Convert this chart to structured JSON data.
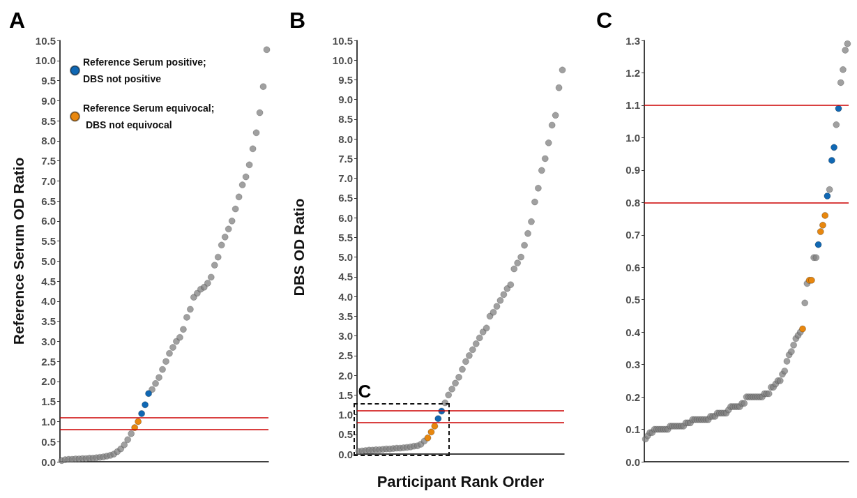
{
  "chart_data": [
    {
      "type": "scatter",
      "title": "A",
      "ylabel": "Reference Serum OD Ratio",
      "categories": [
        null,
        null,
        null,
        null,
        null,
        null,
        null,
        null,
        null,
        null,
        null,
        null,
        null,
        null,
        null,
        null,
        null,
        null,
        null,
        null,
        null,
        null,
        null,
        null,
        null,
        null,
        null,
        null,
        null,
        null,
        null,
        null,
        null,
        null,
        null,
        null,
        null,
        null,
        null,
        null,
        null,
        null,
        null,
        null,
        null,
        null,
        null,
        null,
        null,
        null,
        null,
        null,
        null,
        null,
        null,
        null,
        null,
        null,
        null,
        null
      ],
      "series": [
        {
          "color": "#808080",
          "values": [
            0.03,
            0.05,
            0.06,
            0.06,
            0.07,
            0.07,
            0.08,
            0.08,
            0.09,
            0.09,
            0.1,
            0.11,
            0.12,
            0.14,
            0.16,
            0.19,
            0.25,
            0.32,
            0.42,
            0.55,
            0.7,
            null,
            null,
            null,
            null,
            null,
            1.8,
            1.95,
            2.1,
            2.3,
            2.5,
            2.7,
            2.85,
            3.0,
            3.1,
            3.3,
            3.6,
            3.8,
            4.1,
            4.2,
            4.3,
            4.35,
            4.45,
            4.6,
            4.9,
            5.1,
            5.4,
            5.6,
            5.8,
            6.0,
            6.3,
            6.6,
            6.9,
            7.1,
            7.4,
            7.8,
            8.2,
            8.7,
            9.35,
            10.27
          ]
        },
        {
          "name": "Reference Serum positive; DBS not positive",
          "color": "#1068b4",
          "values": [
            null,
            null,
            null,
            null,
            null,
            null,
            null,
            null,
            null,
            null,
            null,
            null,
            null,
            null,
            null,
            null,
            null,
            null,
            null,
            null,
            null,
            null,
            null,
            1.2,
            1.42,
            1.7,
            null,
            null,
            null,
            null,
            null,
            null,
            null,
            null,
            null,
            null,
            null,
            null,
            null,
            null,
            null,
            null,
            null,
            null,
            null,
            null,
            null,
            null,
            null,
            null,
            null,
            null,
            null,
            null,
            null,
            null,
            null,
            null,
            null,
            null
          ]
        },
        {
          "name": "Reference Serum equivocal; DBS not equivocal",
          "color": "#e8870e",
          "values": [
            null,
            null,
            null,
            null,
            null,
            null,
            null,
            null,
            null,
            null,
            null,
            null,
            null,
            null,
            null,
            null,
            null,
            null,
            null,
            null,
            null,
            0.85,
            1.0,
            null,
            null,
            null,
            null,
            null,
            null,
            null,
            null,
            null,
            null,
            null,
            null,
            null,
            null,
            null,
            null,
            null,
            null,
            null,
            null,
            null,
            null,
            null,
            null,
            null,
            null,
            null,
            null,
            null,
            null,
            null,
            null,
            null,
            null,
            null,
            null,
            null
          ]
        }
      ],
      "ylim": [
        0,
        10.5
      ],
      "yticks": [
        {
          "value": 0,
          "label": "0.0"
        },
        {
          "value": 0.5,
          "label": "0.5"
        },
        {
          "value": 1,
          "label": "1.0"
        },
        {
          "value": 1.5,
          "label": "1.5"
        },
        {
          "value": 2,
          "label": "2.0"
        },
        {
          "value": 2.5,
          "label": "2.5"
        },
        {
          "value": 3,
          "label": "3.0"
        },
        {
          "value": 3.5,
          "label": "3.5"
        },
        {
          "value": 4,
          "label": "4.0"
        },
        {
          "value": 4.5,
          "label": "4.5"
        },
        {
          "value": 5,
          "label": "5.0"
        },
        {
          "value": 5.5,
          "label": "5.5"
        },
        {
          "value": 6,
          "label": "6.0"
        },
        {
          "value": 6.5,
          "label": "6.5"
        },
        {
          "value": 7,
          "label": "7.0"
        },
        {
          "value": 7.5,
          "label": "7.5"
        },
        {
          "value": 8,
          "label": "8.0"
        },
        {
          "value": 8.5,
          "label": "8.5"
        },
        {
          "value": 9,
          "label": "9.0"
        },
        {
          "value": 9.5,
          "label": "9.5"
        },
        {
          "value": 10,
          "label": "10.0"
        },
        {
          "value": 10.5,
          "label": "10.5"
        }
      ],
      "ref_lines": [
        {
          "axis": "y",
          "value": 0.8,
          "color": "#cc0000"
        },
        {
          "axis": "y",
          "value": 1.1,
          "color": "#cc0000"
        }
      ],
      "legend": "top left",
      "marker": "circle",
      "tick_labels": "y"
    },
    {
      "type": "scatter",
      "title": "B",
      "ylabel": "DBS OD Ratio",
      "xlabel": "Participant Rank Order",
      "categories": [
        null,
        null,
        null,
        null,
        null,
        null,
        null,
        null,
        null,
        null,
        null,
        null,
        null,
        null,
        null,
        null,
        null,
        null,
        null,
        null,
        null,
        null,
        null,
        null,
        null,
        null,
        null,
        null,
        null,
        null,
        null,
        null,
        null,
        null,
        null,
        null,
        null,
        null,
        null,
        null,
        null,
        null,
        null,
        null,
        null,
        null,
        null,
        null,
        null,
        null,
        null,
        null,
        null,
        null,
        null,
        null,
        null,
        null,
        null,
        null
      ],
      "series": [
        {
          "color": "#808080",
          "values": [
            0.07,
            0.08,
            0.09,
            0.1,
            0.1,
            0.11,
            0.11,
            0.12,
            0.13,
            0.13,
            0.14,
            0.15,
            0.15,
            0.16,
            0.17,
            0.18,
            0.2,
            0.21,
            0.25,
            0.33,
            null,
            null,
            null,
            null,
            null,
            1.3,
            1.5,
            1.65,
            1.8,
            1.95,
            2.15,
            2.35,
            2.5,
            2.65,
            2.8,
            2.95,
            3.1,
            3.2,
            3.5,
            3.6,
            3.75,
            3.9,
            4.05,
            4.2,
            4.3,
            4.7,
            4.85,
            5.0,
            5.3,
            5.6,
            5.9,
            6.4,
            6.75,
            7.2,
            7.5,
            7.9,
            8.35,
            8.6,
            9.3,
            9.75
          ]
        },
        {
          "color": "#1068b4",
          "values": [
            null,
            null,
            null,
            null,
            null,
            null,
            null,
            null,
            null,
            null,
            null,
            null,
            null,
            null,
            null,
            null,
            null,
            null,
            null,
            null,
            null,
            null,
            null,
            0.9,
            1.09,
            null,
            null,
            null,
            null,
            null,
            null,
            null,
            null,
            null,
            null,
            null,
            null,
            null,
            null,
            null,
            null,
            null,
            null,
            null,
            null,
            null,
            null,
            null,
            null,
            null,
            null,
            null,
            null,
            null,
            null,
            null,
            null,
            null,
            null,
            null
          ]
        },
        {
          "color": "#e8870e",
          "values": [
            null,
            null,
            null,
            null,
            null,
            null,
            null,
            null,
            null,
            null,
            null,
            null,
            null,
            null,
            null,
            null,
            null,
            null,
            null,
            null,
            0.41,
            0.56,
            0.71,
            null,
            null,
            null,
            null,
            null,
            null,
            null,
            null,
            null,
            null,
            null,
            null,
            null,
            null,
            null,
            null,
            null,
            null,
            null,
            null,
            null,
            null,
            null,
            null,
            null,
            null,
            null,
            null,
            null,
            null,
            null,
            null,
            null,
            null,
            null,
            null,
            null
          ]
        }
      ],
      "ylim": [
        0,
        10.5
      ],
      "yticks": [
        {
          "value": 0,
          "label": "0.0"
        },
        {
          "value": 0.5,
          "label": "0.5"
        },
        {
          "value": 1,
          "label": "1.0"
        },
        {
          "value": 1.5,
          "label": "1.5"
        },
        {
          "value": 2,
          "label": "2.0"
        },
        {
          "value": 2.5,
          "label": "2.5"
        },
        {
          "value": 3,
          "label": "3.0"
        },
        {
          "value": 3.5,
          "label": "3.5"
        },
        {
          "value": 4,
          "label": "4.0"
        },
        {
          "value": 4.5,
          "label": "4.5"
        },
        {
          "value": 5,
          "label": "5.0"
        },
        {
          "value": 5.5,
          "label": "5.5"
        },
        {
          "value": 6,
          "label": "6.0"
        },
        {
          "value": 6.5,
          "label": "6.5"
        },
        {
          "value": 7,
          "label": "7.0"
        },
        {
          "value": 7.5,
          "label": "7.5"
        },
        {
          "value": 8,
          "label": "8.0"
        },
        {
          "value": 8.5,
          "label": "8.5"
        },
        {
          "value": 9,
          "label": "9.0"
        },
        {
          "value": 9.5,
          "label": "9.5"
        },
        {
          "value": 10,
          "label": "10.0"
        },
        {
          "value": 10.5,
          "label": "10.5"
        }
      ],
      "ref_lines": [
        {
          "axis": "y",
          "value": 0.8,
          "color": "#cc0000"
        },
        {
          "axis": "y",
          "value": 1.1,
          "color": "#cc0000"
        }
      ],
      "annotations": [
        "C"
      ],
      "marker": "circle",
      "tick_labels": "y"
    },
    {
      "type": "scatter",
      "title": "C",
      "categories": [
        null,
        null,
        null,
        null,
        null,
        null,
        null,
        null,
        null,
        null,
        null,
        null,
        null,
        null,
        null,
        null,
        null,
        null,
        null,
        null,
        null,
        null,
        null,
        null,
        null,
        null,
        null,
        null,
        null,
        null,
        null,
        null,
        null,
        null,
        null,
        null,
        null,
        null,
        null,
        null,
        null,
        null,
        null,
        null,
        null,
        null,
        null,
        null,
        null,
        null,
        null,
        null,
        null,
        null,
        null,
        null,
        null,
        null,
        null,
        null,
        null,
        null,
        null,
        null,
        null,
        null,
        null,
        null,
        null,
        null,
        null,
        null,
        null,
        null,
        null,
        null,
        null,
        null,
        null,
        null,
        null,
        null,
        null,
        null,
        null,
        null,
        null,
        null,
        null,
        null,
        null
      ],
      "series": [
        {
          "color": "#808080",
          "values": [
            0.07,
            0.08,
            0.09,
            0.09,
            0.1,
            0.1,
            0.1,
            0.1,
            0.1,
            0.1,
            0.1,
            0.11,
            0.11,
            0.11,
            0.11,
            0.11,
            0.11,
            0.11,
            0.12,
            0.12,
            0.12,
            0.13,
            0.13,
            0.13,
            0.13,
            0.13,
            0.13,
            0.13,
            0.13,
            0.14,
            0.14,
            0.14,
            0.15,
            0.15,
            0.15,
            0.15,
            0.15,
            0.16,
            0.17,
            0.17,
            0.17,
            0.17,
            0.17,
            0.18,
            0.18,
            0.2,
            0.2,
            0.2,
            0.2,
            0.2,
            0.2,
            0.2,
            0.2,
            0.21,
            0.21,
            0.21,
            0.23,
            0.23,
            0.24,
            0.25,
            0.25,
            0.27,
            0.28,
            0.31,
            0.33,
            0.34,
            0.36,
            0.38,
            0.39,
            0.4,
            null,
            0.49,
            0.55,
            null,
            null,
            0.63,
            0.63,
            null,
            null,
            null,
            null,
            null,
            0.84,
            null,
            null,
            1.04,
            null,
            1.17,
            1.21,
            1.27,
            1.29
          ]
        },
        {
          "color": "#1068b4",
          "values": [
            null,
            null,
            null,
            null,
            null,
            null,
            null,
            null,
            null,
            null,
            null,
            null,
            null,
            null,
            null,
            null,
            null,
            null,
            null,
            null,
            null,
            null,
            null,
            null,
            null,
            null,
            null,
            null,
            null,
            null,
            null,
            null,
            null,
            null,
            null,
            null,
            null,
            null,
            null,
            null,
            null,
            null,
            null,
            null,
            null,
            null,
            null,
            null,
            null,
            null,
            null,
            null,
            null,
            null,
            null,
            null,
            null,
            null,
            null,
            null,
            null,
            null,
            null,
            null,
            null,
            null,
            null,
            null,
            null,
            null,
            null,
            null,
            null,
            null,
            null,
            null,
            null,
            0.67,
            null,
            null,
            null,
            0.82,
            null,
            0.93,
            0.97,
            null,
            1.09,
            null,
            null,
            null,
            null
          ]
        },
        {
          "color": "#e8870e",
          "values": [
            null,
            null,
            null,
            null,
            null,
            null,
            null,
            null,
            null,
            null,
            null,
            null,
            null,
            null,
            null,
            null,
            null,
            null,
            null,
            null,
            null,
            null,
            null,
            null,
            null,
            null,
            null,
            null,
            null,
            null,
            null,
            null,
            null,
            null,
            null,
            null,
            null,
            null,
            null,
            null,
            null,
            null,
            null,
            null,
            null,
            null,
            null,
            null,
            null,
            null,
            null,
            null,
            null,
            null,
            null,
            null,
            null,
            null,
            null,
            null,
            null,
            null,
            null,
            null,
            null,
            null,
            null,
            null,
            null,
            null,
            0.41,
            null,
            null,
            0.56,
            0.56,
            null,
            null,
            null,
            0.71,
            0.73,
            0.76,
            null,
            null,
            null,
            null,
            null,
            null,
            null,
            null,
            null,
            null
          ]
        }
      ],
      "ylim": [
        0,
        1.3
      ],
      "yticks": [
        {
          "value": 0,
          "label": "0.0"
        },
        {
          "value": 0.1,
          "label": "0.1"
        },
        {
          "value": 0.2,
          "label": "0.2"
        },
        {
          "value": 0.3,
          "label": "0.3"
        },
        {
          "value": 0.4,
          "label": "0.4"
        },
        {
          "value": 0.5,
          "label": "0.5"
        },
        {
          "value": 0.6,
          "label": "0.6"
        },
        {
          "value": 0.7,
          "label": "0.7"
        },
        {
          "value": 0.8,
          "label": "0.8"
        },
        {
          "value": 0.9,
          "label": "0.9"
        },
        {
          "value": 1,
          "label": "1.0"
        },
        {
          "value": 1.1,
          "label": "1.1"
        },
        {
          "value": 1.2,
          "label": "1.2"
        },
        {
          "value": 1.3,
          "label": "1.3"
        }
      ],
      "ref_lines": [
        {
          "axis": "y",
          "value": 0.8,
          "color": "#cc0000"
        },
        {
          "axis": "y",
          "value": 1.1,
          "color": "#cc0000"
        }
      ],
      "marker": "circle",
      "tick_labels": "y"
    }
  ]
}
